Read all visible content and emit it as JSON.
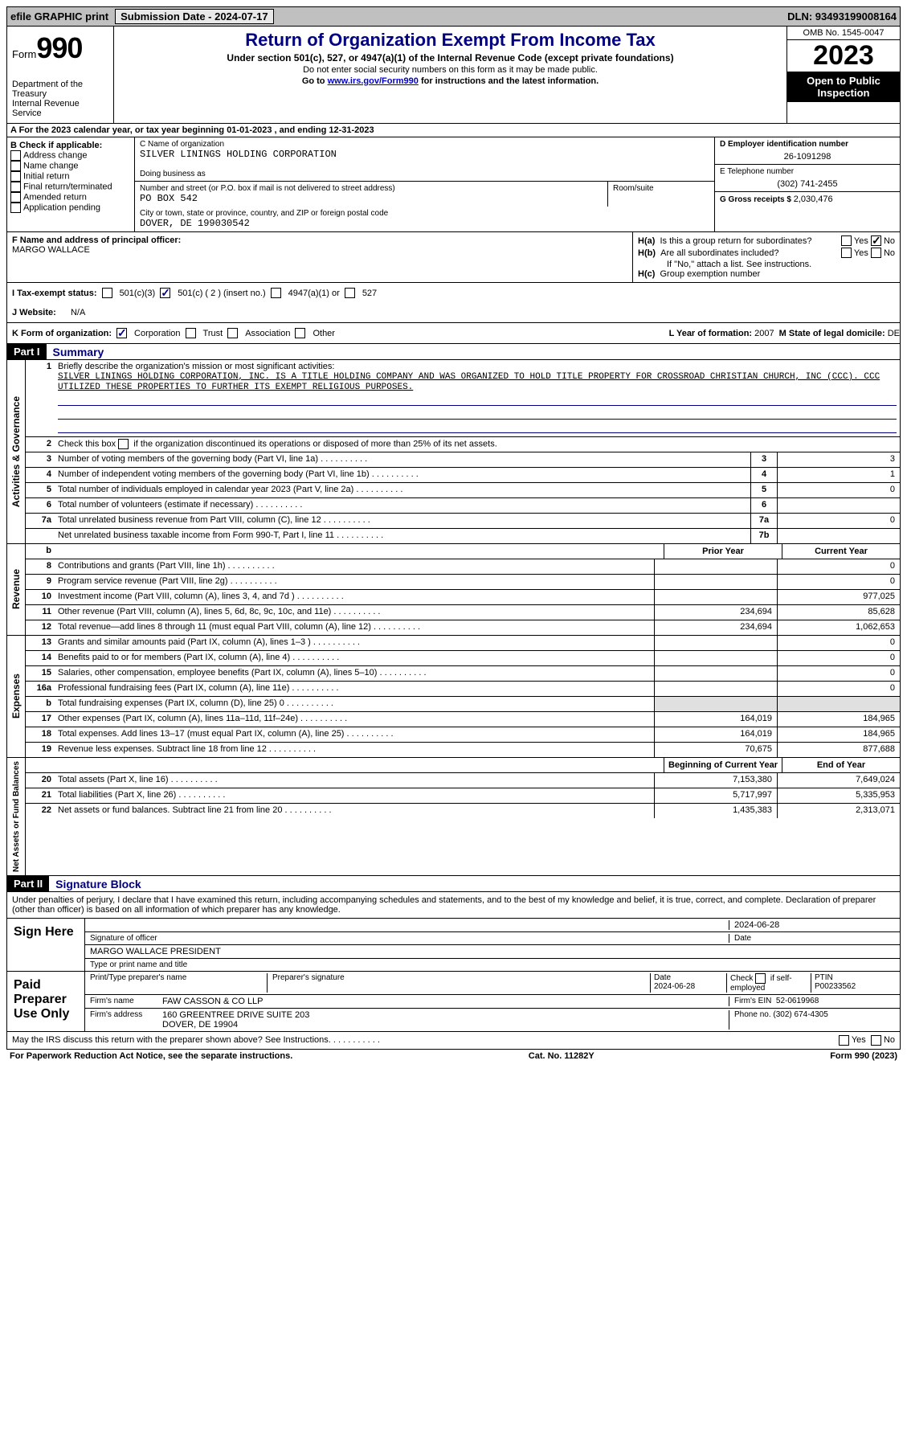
{
  "topbar": {
    "efile": "efile GRAPHIC print",
    "sub_label": "Submission Date - 2024-07-17",
    "dln": "DLN: 93493199008164"
  },
  "header": {
    "form_word": "Form",
    "form_num": "990",
    "dept": "Department of the Treasury\nInternal Revenue Service",
    "title": "Return of Organization Exempt From Income Tax",
    "subtitle": "Under section 501(c), 527, or 4947(a)(1) of the Internal Revenue Code (except private foundations)",
    "instr1": "Do not enter social security numbers on this form as it may be made public.",
    "instr2_pre": "Go to ",
    "instr2_link": "www.irs.gov/Form990",
    "instr2_post": " for instructions and the latest information.",
    "omb": "OMB No. 1545-0047",
    "year": "2023",
    "open": "Open to Public Inspection"
  },
  "section_a": {
    "text": "A For the 2023 calendar year, or tax year beginning 01-01-2023   , and ending 12-31-2023"
  },
  "box_b": {
    "label": "B Check if applicable:",
    "opts": [
      "Address change",
      "Name change",
      "Initial return",
      "Final return/terminated",
      "Amended return",
      "Application pending"
    ]
  },
  "box_c": {
    "name_label": "C Name of organization",
    "name": "SILVER LININGS HOLDING CORPORATION",
    "dba_label": "Doing business as",
    "dba": "",
    "street_label": "Number and street (or P.O. box if mail is not delivered to street address)",
    "street": "PO BOX 542",
    "room_label": "Room/suite",
    "city_label": "City or town, state or province, country, and ZIP or foreign postal code",
    "city": "DOVER, DE  199030542"
  },
  "box_d": {
    "ein_label": "D Employer identification number",
    "ein": "26-1091298",
    "phone_label": "E Telephone number",
    "phone": "(302) 741-2455",
    "gross_label": "G Gross receipts $ ",
    "gross": "2,030,476"
  },
  "box_f": {
    "label": "F  Name and address of principal officer:",
    "name": "MARGO WALLACE"
  },
  "box_h": {
    "ha": "H(a)  Is this a group return for subordinates?",
    "hb": "H(b)  Are all subordinates included?",
    "hb_note": "If \"No,\" attach a list. See instructions.",
    "hc": "H(c)  Group exemption number",
    "yes": "Yes",
    "no": "No"
  },
  "box_i": {
    "label": "I  Tax-exempt status:",
    "o1": "501(c)(3)",
    "o2": "501(c) ( 2 ) (insert no.)",
    "o3": "4947(a)(1) or",
    "o4": "527"
  },
  "box_j": {
    "label": "J  Website:",
    "val": "N/A"
  },
  "box_k": {
    "label": "K Form of organization:",
    "o1": "Corporation",
    "o2": "Trust",
    "o3": "Association",
    "o4": "Other"
  },
  "box_l": {
    "label": "L Year of formation: ",
    "val": "2007"
  },
  "box_m": {
    "label": "M State of legal domicile: ",
    "val": "DE"
  },
  "part1": {
    "tag": "Part I",
    "title": "Summary",
    "tab_ag": "Activities & Governance",
    "tab_rev": "Revenue",
    "tab_exp": "Expenses",
    "tab_net": "Net Assets or Fund Balances",
    "l1_label": "Briefly describe the organization's mission or most significant activities:",
    "l1_text": "SILVER LININGS HOLDING CORPORATION, INC. IS A TITLE HOLDING COMPANY AND WAS ORGANIZED TO HOLD TITLE PROPERTY FOR CROSSROAD CHRISTIAN CHURCH, INC (CCC). CCC UTILIZED THESE PROPERTIES TO FURTHER ITS EXEMPT RELIGIOUS PURPOSES.",
    "l2": "Check this box      if the organization discontinued its operations or disposed of more than 25% of its net assets.",
    "rows_ag": [
      {
        "n": "3",
        "t": "Number of voting members of the governing body (Part VI, line 1a)",
        "b": "3",
        "v": "3"
      },
      {
        "n": "4",
        "t": "Number of independent voting members of the governing body (Part VI, line 1b)",
        "b": "4",
        "v": "1"
      },
      {
        "n": "5",
        "t": "Total number of individuals employed in calendar year 2023 (Part V, line 2a)",
        "b": "5",
        "v": "0"
      },
      {
        "n": "6",
        "t": "Total number of volunteers (estimate if necessary)",
        "b": "6",
        "v": ""
      },
      {
        "n": "7a",
        "t": "Total unrelated business revenue from Part VIII, column (C), line 12",
        "b": "7a",
        "v": "0"
      },
      {
        "n": "",
        "t": "Net unrelated business taxable income from Form 990-T, Part I, line 11",
        "b": "7b",
        "v": ""
      }
    ],
    "hdr_prior": "Prior Year",
    "hdr_curr": "Current Year",
    "rows_rev": [
      {
        "n": "8",
        "t": "Contributions and grants (Part VIII, line 1h)",
        "p": "",
        "c": "0"
      },
      {
        "n": "9",
        "t": "Program service revenue (Part VIII, line 2g)",
        "p": "",
        "c": "0"
      },
      {
        "n": "10",
        "t": "Investment income (Part VIII, column (A), lines 3, 4, and 7d )",
        "p": "",
        "c": "977,025"
      },
      {
        "n": "11",
        "t": "Other revenue (Part VIII, column (A), lines 5, 6d, 8c, 9c, 10c, and 11e)",
        "p": "234,694",
        "c": "85,628"
      },
      {
        "n": "12",
        "t": "Total revenue—add lines 8 through 11 (must equal Part VIII, column (A), line 12)",
        "p": "234,694",
        "c": "1,062,653"
      }
    ],
    "rows_exp": [
      {
        "n": "13",
        "t": "Grants and similar amounts paid (Part IX, column (A), lines 1–3 )",
        "p": "",
        "c": "0"
      },
      {
        "n": "14",
        "t": "Benefits paid to or for members (Part IX, column (A), line 4)",
        "p": "",
        "c": "0"
      },
      {
        "n": "15",
        "t": "Salaries, other compensation, employee benefits (Part IX, column (A), lines 5–10)",
        "p": "",
        "c": "0"
      },
      {
        "n": "16a",
        "t": "Professional fundraising fees (Part IX, column (A), line 11e)",
        "p": "",
        "c": "0"
      },
      {
        "n": "b",
        "t": "Total fundraising expenses (Part IX, column (D), line 25) 0",
        "p": "shade",
        "c": "shade"
      },
      {
        "n": "17",
        "t": "Other expenses (Part IX, column (A), lines 11a–11d, 11f–24e)",
        "p": "164,019",
        "c": "184,965"
      },
      {
        "n": "18",
        "t": "Total expenses. Add lines 13–17 (must equal Part IX, column (A), line 25)",
        "p": "164,019",
        "c": "184,965"
      },
      {
        "n": "19",
        "t": "Revenue less expenses. Subtract line 18 from line 12",
        "p": "70,675",
        "c": "877,688"
      }
    ],
    "hdr_beg": "Beginning of Current Year",
    "hdr_end": "End of Year",
    "rows_net": [
      {
        "n": "20",
        "t": "Total assets (Part X, line 16)",
        "p": "7,153,380",
        "c": "7,649,024"
      },
      {
        "n": "21",
        "t": "Total liabilities (Part X, line 26)",
        "p": "5,717,997",
        "c": "5,335,953"
      },
      {
        "n": "22",
        "t": "Net assets or fund balances. Subtract line 21 from line 20",
        "p": "1,435,383",
        "c": "2,313,071"
      }
    ]
  },
  "part2": {
    "tag": "Part II",
    "title": "Signature Block",
    "decl": "Under penalties of perjury, I declare that I have examined this return, including accompanying schedules and statements, and to the best of my knowledge and belief, it is true, correct, and complete. Declaration of preparer (other than officer) is based on all information of which preparer has any knowledge.",
    "sign_here": "Sign Here",
    "sig_date": "2024-06-28",
    "sig_officer_label": "Signature of officer",
    "sig_date_label": "Date",
    "sig_name": "MARGO WALLACE PRESIDENT",
    "sig_name_label": "Type or print name and title",
    "paid_label": "Paid Preparer Use Only",
    "prep_name_label": "Print/Type preparer's name",
    "prep_sig_label": "Preparer's signature",
    "prep_date_label": "Date",
    "prep_date": "2024-06-28",
    "prep_check": "Check      if self-employed",
    "ptin_label": "PTIN",
    "ptin": "P00233562",
    "firm_name_label": "Firm's name",
    "firm_name": "FAW CASSON & CO LLP",
    "firm_ein_label": "Firm's EIN",
    "firm_ein": "52-0619968",
    "firm_addr_label": "Firm's address",
    "firm_addr": "160 GREENTREE DRIVE SUITE 203\nDOVER, DE  19904",
    "firm_phone_label": "Phone no.",
    "firm_phone": "(302) 674-4305",
    "discuss": "May the IRS discuss this return with the preparer shown above? See Instructions."
  },
  "footer": {
    "pra": "For Paperwork Reduction Act Notice, see the separate instructions.",
    "cat": "Cat. No. 11282Y",
    "form": "Form 990 (2023)"
  }
}
